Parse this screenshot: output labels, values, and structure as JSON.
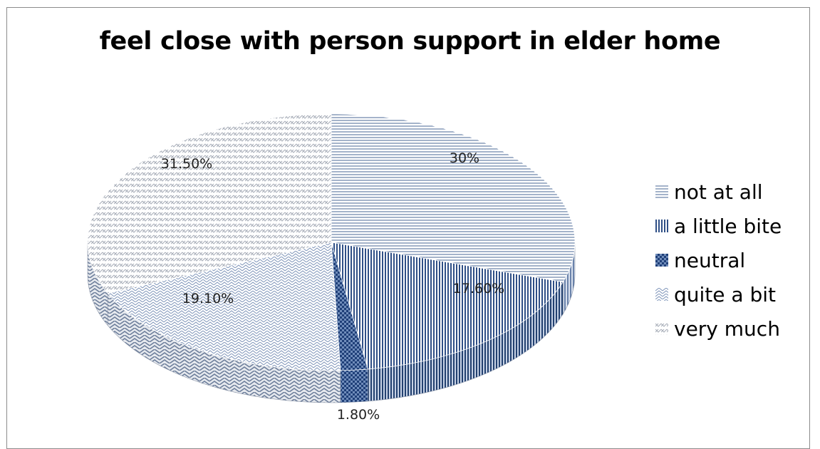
{
  "chart_data": {
    "type": "pie",
    "title": "feel close with person support in elder home",
    "slices": [
      {
        "name": "not at all",
        "value": 30.0,
        "label": "30%",
        "color": "#c9d4e5"
      },
      {
        "name": "a little bite",
        "value": 17.6,
        "label": "17.60%",
        "color": "#4f6e9e"
      },
      {
        "name": "neutral",
        "value": 1.8,
        "label": "1.80%",
        "color": "#2e5088"
      },
      {
        "name": "quite a bit",
        "value": 19.1,
        "label": "19.10%",
        "color": "#dfe5ef"
      },
      {
        "name": "very much",
        "value": 31.5,
        "label": "31.50%",
        "color": "#d6d8dd"
      }
    ],
    "legend_position": "right"
  }
}
